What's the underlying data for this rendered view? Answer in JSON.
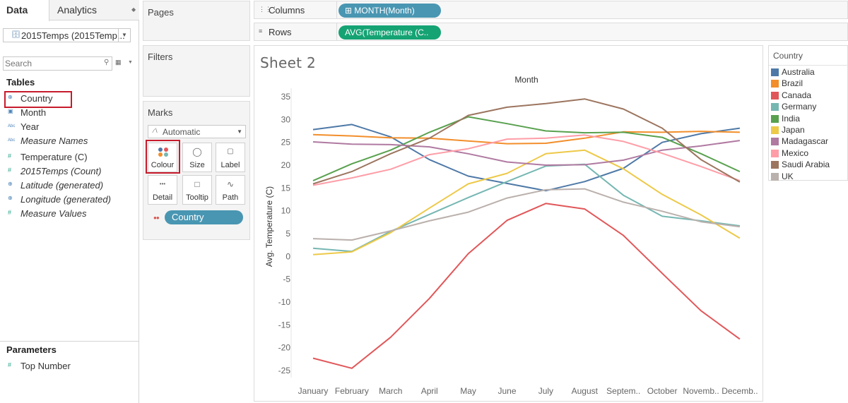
{
  "left_pane": {
    "tabs": {
      "data": "Data",
      "analytics": "Analytics"
    },
    "datasource": "2015Temps (2015Temp...",
    "search_placeholder": "Search",
    "tables_heading": "Tables",
    "fields": [
      {
        "label": "Country",
        "kind": "geo",
        "italic": false
      },
      {
        "label": "Month",
        "kind": "date",
        "italic": false
      },
      {
        "label": "Year",
        "kind": "abc",
        "italic": false
      },
      {
        "label": "Measure Names",
        "kind": "abc",
        "italic": true
      },
      {
        "label": "Temperature (C)",
        "kind": "measure",
        "italic": false
      },
      {
        "label": "2015Temps (Count)",
        "kind": "measure",
        "italic": true
      },
      {
        "label": "Latitude (generated)",
        "kind": "geo",
        "italic": true
      },
      {
        "label": "Longitude (generated)",
        "kind": "geo",
        "italic": true
      },
      {
        "label": "Measure Values",
        "kind": "measure",
        "italic": true
      }
    ],
    "parameters_heading": "Parameters",
    "parameters": [
      {
        "label": "Top Number"
      }
    ]
  },
  "shelves": {
    "pages": "Pages",
    "filters": "Filters",
    "marks": "Marks",
    "columns_label": "Columns",
    "columns_pill": "MONTH(Month)",
    "rows_label": "Rows",
    "rows_pill": "AVG(Temperature (C.."
  },
  "marks_card": {
    "mark_type": "Automatic",
    "buttons": {
      "colour": "Colour",
      "size": "Size",
      "label": "Label",
      "detail": "Detail",
      "tooltip": "Tooltip",
      "path": "Path"
    },
    "color_pill": "Country"
  },
  "sheet": {
    "title": "Sheet 2"
  },
  "legend": {
    "title": "Country",
    "items": [
      {
        "label": "Australia",
        "color": "#4e79a7"
      },
      {
        "label": "Brazil",
        "color": "#f28e2b"
      },
      {
        "label": "Canada",
        "color": "#e15759"
      },
      {
        "label": "Germany",
        "color": "#76b7b2"
      },
      {
        "label": "India",
        "color": "#59a14f"
      },
      {
        "label": "Japan",
        "color": "#edc948"
      },
      {
        "label": "Madagascar",
        "color": "#b07aa1"
      },
      {
        "label": "Mexico",
        "color": "#ff9da7"
      },
      {
        "label": "Saudi Arabia",
        "color": "#9c755f"
      },
      {
        "label": "UK",
        "color": "#bab0ac"
      }
    ]
  },
  "chart_data": {
    "type": "line",
    "title": "Month",
    "ylabel": "Avg. Temperature (C)",
    "xlabel": "",
    "categories": [
      "January",
      "February",
      "March",
      "April",
      "May",
      "June",
      "July",
      "August",
      "Septem..",
      "October",
      "Novemb..",
      "Decemb.."
    ],
    "ylim": [
      -27,
      36
    ],
    "yticks": [
      35,
      30,
      25,
      20,
      15,
      10,
      5,
      0,
      -5,
      -10,
      -15,
      -20,
      -25
    ],
    "grid": false,
    "legend_position": "right",
    "series": [
      {
        "name": "Australia",
        "color": "#4e79a7",
        "values": [
          27.8,
          28.9,
          26.2,
          21.2,
          17.6,
          16.0,
          14.4,
          16.4,
          19.3,
          25.0,
          26.9,
          28.1
        ]
      },
      {
        "name": "Brazil",
        "color": "#f28e2b",
        "values": [
          26.7,
          26.4,
          26.0,
          25.9,
          25.3,
          24.7,
          24.8,
          25.9,
          27.3,
          27.2,
          27.4,
          27.2
        ]
      },
      {
        "name": "Canada",
        "color": "#e15759",
        "values": [
          -22.3,
          -24.5,
          -17.7,
          -9.2,
          0.6,
          7.9,
          11.6,
          10.4,
          4.6,
          -3.7,
          -11.9,
          -18.1
        ]
      },
      {
        "name": "Germany",
        "color": "#76b7b2",
        "values": [
          1.8,
          1.1,
          5.5,
          9.2,
          12.9,
          16.4,
          19.8,
          20.2,
          13.4,
          8.8,
          7.8,
          6.7
        ]
      },
      {
        "name": "India",
        "color": "#59a14f",
        "values": [
          16.6,
          20.3,
          23.3,
          27.2,
          30.6,
          29.1,
          27.5,
          27.1,
          27.2,
          26.1,
          22.5,
          18.6
        ]
      },
      {
        "name": "Japan",
        "color": "#edc948",
        "values": [
          0.4,
          1.0,
          5.2,
          10.6,
          15.9,
          18.2,
          22.5,
          23.3,
          19.2,
          13.6,
          9.1,
          4.0
        ]
      },
      {
        "name": "Madagascar",
        "color": "#b07aa1",
        "values": [
          25.1,
          24.6,
          24.5,
          24.0,
          22.5,
          20.7,
          20.0,
          20.1,
          21.1,
          23.3,
          24.2,
          25.4
        ]
      },
      {
        "name": "Mexico",
        "color": "#ff9da7",
        "values": [
          15.6,
          17.2,
          19.1,
          22.3,
          23.6,
          25.7,
          25.9,
          26.6,
          25.2,
          22.6,
          19.7,
          16.6
        ]
      },
      {
        "name": "Saudi Arabia",
        "color": "#9c755f",
        "values": [
          15.9,
          18.6,
          22.5,
          25.9,
          30.9,
          32.7,
          33.5,
          34.5,
          32.3,
          28.1,
          21.2,
          16.3
        ]
      },
      {
        "name": "UK",
        "color": "#bab0ac",
        "values": [
          3.9,
          3.6,
          5.6,
          7.8,
          9.7,
          12.8,
          14.6,
          14.8,
          11.9,
          9.9,
          7.6,
          6.5
        ]
      }
    ]
  }
}
